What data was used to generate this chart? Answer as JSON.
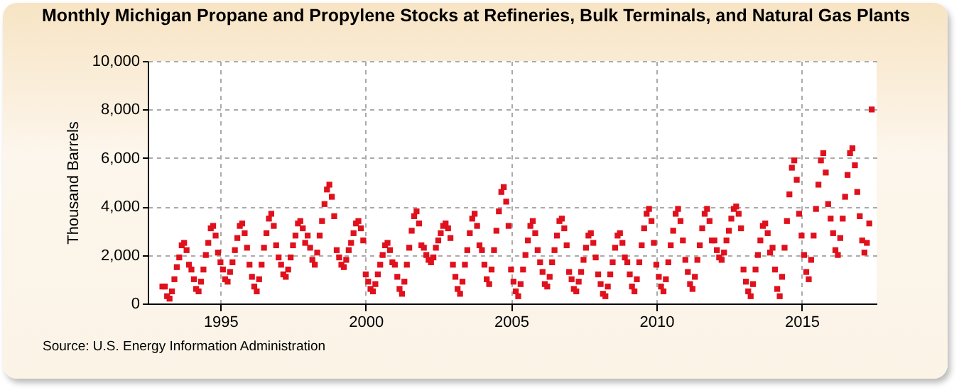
{
  "chart_data": {
    "type": "scatter",
    "title": "Monthly Michigan Propane and Propylene Stocks at Refineries, Bulk Terminals, and Natural Gas Plants",
    "ylabel": "Thousand Barrels",
    "annotations": [
      "Source: U.S. Energy Information Administration"
    ],
    "xlim": [
      "1992-07",
      "2017-08"
    ],
    "xticks": [
      {
        "value": "1995",
        "label": "1995"
      },
      {
        "value": "2000",
        "label": "2000"
      },
      {
        "value": "2005",
        "label": "2005"
      },
      {
        "value": "2010",
        "label": "2010"
      },
      {
        "value": "2015",
        "label": "2015"
      }
    ],
    "ylim": [
      0,
      10000
    ],
    "yticks": [
      {
        "value": 0,
        "label": "0"
      },
      {
        "value": 2000,
        "label": "2,000"
      },
      {
        "value": 4000,
        "label": "4,000"
      },
      {
        "value": 6000,
        "label": "6,000"
      },
      {
        "value": 8000,
        "label": "8,000"
      },
      {
        "value": 10000,
        "label": "10,000"
      }
    ],
    "grid": true,
    "marker": "square",
    "series": [
      {
        "color": "#e0101c",
        "x": [
          "1993-01",
          "1993-02",
          "1993-03",
          "1993-04",
          "1993-05",
          "1993-06",
          "1993-07",
          "1993-08",
          "1993-09",
          "1993-10",
          "1993-11",
          "1993-12",
          "1994-01",
          "1994-02",
          "1994-03",
          "1994-04",
          "1994-05",
          "1994-06",
          "1994-07",
          "1994-08",
          "1994-09",
          "1994-10",
          "1994-11",
          "1994-12",
          "1995-01",
          "1995-02",
          "1995-03",
          "1995-04",
          "1995-05",
          "1995-06",
          "1995-07",
          "1995-08",
          "1995-09",
          "1995-10",
          "1995-11",
          "1995-12",
          "1996-01",
          "1996-02",
          "1996-03",
          "1996-04",
          "1996-05",
          "1996-06",
          "1996-07",
          "1996-08",
          "1996-09",
          "1996-10",
          "1996-11",
          "1996-12",
          "1997-01",
          "1997-02",
          "1997-03",
          "1997-04",
          "1997-05",
          "1997-06",
          "1997-07",
          "1997-08",
          "1997-09",
          "1997-10",
          "1997-11",
          "1997-12",
          "1998-01",
          "1998-02",
          "1998-03",
          "1998-04",
          "1998-05",
          "1998-06",
          "1998-07",
          "1998-08",
          "1998-09",
          "1998-10",
          "1998-11",
          "1998-12",
          "1999-01",
          "1999-02",
          "1999-03",
          "1999-04",
          "1999-05",
          "1999-06",
          "1999-07",
          "1999-08",
          "1999-09",
          "1999-10",
          "1999-11",
          "1999-12",
          "2000-01",
          "2000-02",
          "2000-03",
          "2000-04",
          "2000-05",
          "2000-06",
          "2000-07",
          "2000-08",
          "2000-09",
          "2000-10",
          "2000-11",
          "2000-12",
          "2001-01",
          "2001-02",
          "2001-03",
          "2001-04",
          "2001-05",
          "2001-06",
          "2001-07",
          "2001-08",
          "2001-09",
          "2001-10",
          "2001-11",
          "2001-12",
          "2002-01",
          "2002-02",
          "2002-03",
          "2002-04",
          "2002-05",
          "2002-06",
          "2002-07",
          "2002-08",
          "2002-09",
          "2002-10",
          "2002-11",
          "2002-12",
          "2003-01",
          "2003-02",
          "2003-03",
          "2003-04",
          "2003-05",
          "2003-06",
          "2003-07",
          "2003-08",
          "2003-09",
          "2003-10",
          "2003-11",
          "2003-12",
          "2004-01",
          "2004-02",
          "2004-03",
          "2004-04",
          "2004-05",
          "2004-06",
          "2004-07",
          "2004-08",
          "2004-09",
          "2004-10",
          "2004-11",
          "2004-12",
          "2005-01",
          "2005-02",
          "2005-03",
          "2005-04",
          "2005-05",
          "2005-06",
          "2005-07",
          "2005-08",
          "2005-09",
          "2005-10",
          "2005-11",
          "2005-12",
          "2006-01",
          "2006-02",
          "2006-03",
          "2006-04",
          "2006-05",
          "2006-06",
          "2006-07",
          "2006-08",
          "2006-09",
          "2006-10",
          "2006-11",
          "2006-12",
          "2007-01",
          "2007-02",
          "2007-03",
          "2007-04",
          "2007-05",
          "2007-06",
          "2007-07",
          "2007-08",
          "2007-09",
          "2007-10",
          "2007-11",
          "2007-12",
          "2008-01",
          "2008-02",
          "2008-03",
          "2008-04",
          "2008-05",
          "2008-06",
          "2008-07",
          "2008-08",
          "2008-09",
          "2008-10",
          "2008-11",
          "2008-12",
          "2009-01",
          "2009-02",
          "2009-03",
          "2009-04",
          "2009-05",
          "2009-06",
          "2009-07",
          "2009-08",
          "2009-09",
          "2009-10",
          "2009-11",
          "2009-12",
          "2010-01",
          "2010-02",
          "2010-03",
          "2010-04",
          "2010-05",
          "2010-06",
          "2010-07",
          "2010-08",
          "2010-09",
          "2010-10",
          "2010-11",
          "2010-12",
          "2011-01",
          "2011-02",
          "2011-03",
          "2011-04",
          "2011-05",
          "2011-06",
          "2011-07",
          "2011-08",
          "2011-09",
          "2011-10",
          "2011-11",
          "2011-12",
          "2012-01",
          "2012-02",
          "2012-03",
          "2012-04",
          "2012-05",
          "2012-06",
          "2012-07",
          "2012-08",
          "2012-09",
          "2012-10",
          "2012-11",
          "2012-12",
          "2013-01",
          "2013-02",
          "2013-03",
          "2013-04",
          "2013-05",
          "2013-06",
          "2013-07",
          "2013-08",
          "2013-09",
          "2013-10",
          "2013-11",
          "2013-12",
          "2014-01",
          "2014-02",
          "2014-03",
          "2014-04",
          "2014-05",
          "2014-06",
          "2014-07",
          "2014-08",
          "2014-09",
          "2014-10",
          "2014-11",
          "2014-12",
          "2015-01",
          "2015-02",
          "2015-03",
          "2015-04",
          "2015-05",
          "2015-06",
          "2015-07",
          "2015-08",
          "2015-09",
          "2015-10",
          "2015-11",
          "2015-12",
          "2016-01",
          "2016-02",
          "2016-03",
          "2016-04",
          "2016-05",
          "2016-06",
          "2016-07",
          "2016-08",
          "2016-09",
          "2016-10",
          "2016-11",
          "2016-12",
          "2017-01",
          "2017-02",
          "2017-03",
          "2017-04",
          "2017-05",
          "2017-06"
        ],
        "values": [
          700,
          700,
          300,
          200,
          500,
          1000,
          1500,
          1900,
          2400,
          2500,
          2200,
          1600,
          1400,
          1000,
          600,
          500,
          900,
          1400,
          2000,
          2500,
          3100,
          3200,
          2800,
          2100,
          1700,
          1400,
          1000,
          900,
          1300,
          1700,
          2200,
          2700,
          3200,
          3300,
          2900,
          2300,
          1600,
          1100,
          700,
          500,
          1000,
          1600,
          2300,
          2900,
          3500,
          3700,
          3200,
          2400,
          1900,
          1600,
          1200,
          1100,
          1400,
          1900,
          2400,
          2800,
          3300,
          3400,
          3100,
          2500,
          2800,
          2300,
          1800,
          1600,
          2100,
          2800,
          3400,
          4100,
          4700,
          4900,
          4400,
          3600,
          2200,
          1900,
          1600,
          1500,
          1800,
          2200,
          2500,
          2900,
          3300,
          3400,
          3100,
          2600,
          1200,
          900,
          600,
          500,
          800,
          1200,
          1600,
          2000,
          2400,
          2500,
          2200,
          1700,
          1600,
          1100,
          600,
          400,
          900,
          1600,
          2300,
          3000,
          3600,
          3800,
          3300,
          2400,
          2300,
          2000,
          1800,
          1700,
          1900,
          2300,
          2600,
          2900,
          3200,
          3300,
          3100,
          2700,
          1600,
          1100,
          600,
          400,
          900,
          1600,
          2200,
          2900,
          3500,
          3700,
          3200,
          2400,
          2200,
          1600,
          1000,
          800,
          1400,
          2200,
          3000,
          3800,
          4600,
          4800,
          4200,
          3200,
          1400,
          900,
          500,
          300,
          800,
          1400,
          2000,
          2600,
          3200,
          3400,
          2900,
          2200,
          1700,
          1300,
          800,
          700,
          1100,
          1700,
          2200,
          2800,
          3400,
          3500,
          3100,
          2400,
          1300,
          1000,
          600,
          500,
          900,
          1300,
          1800,
          2300,
          2800,
          2900,
          2500,
          1900,
          1200,
          800,
          400,
          300,
          700,
          1200,
          1700,
          2300,
          2800,
          2900,
          2500,
          1900,
          1700,
          1200,
          700,
          500,
          1000,
          1700,
          2400,
          3100,
          3700,
          3900,
          3400,
          2500,
          1600,
          1100,
          700,
          500,
          1000,
          1700,
          2400,
          3000,
          3700,
          3900,
          3400,
          2600,
          1800,
          1300,
          800,
          600,
          1100,
          1800,
          2400,
          3100,
          3700,
          3900,
          3400,
          2600,
          2600,
          2200,
          1900,
          1800,
          2100,
          2600,
          3000,
          3500,
          3900,
          4000,
          3700,
          3100,
          1400,
          900,
          500,
          300,
          800,
          1400,
          2000,
          2600,
          3200,
          3300,
          2900,
          2100,
          2300,
          1400,
          600,
          300,
          1100,
          2300,
          3400,
          4500,
          5600,
          5900,
          5100,
          3700,
          2800,
          2000,
          1300,
          1000,
          1800,
          2800,
          3900,
          4900,
          5900,
          6200,
          5400,
          4100,
          3500,
          2900,
          2200,
          2000,
          2700,
          3500,
          4400,
          5300,
          6200,
          6400,
          5700,
          4600,
          3600,
          2600,
          2100,
          2500,
          3300,
          8000
        ]
      }
    ]
  }
}
